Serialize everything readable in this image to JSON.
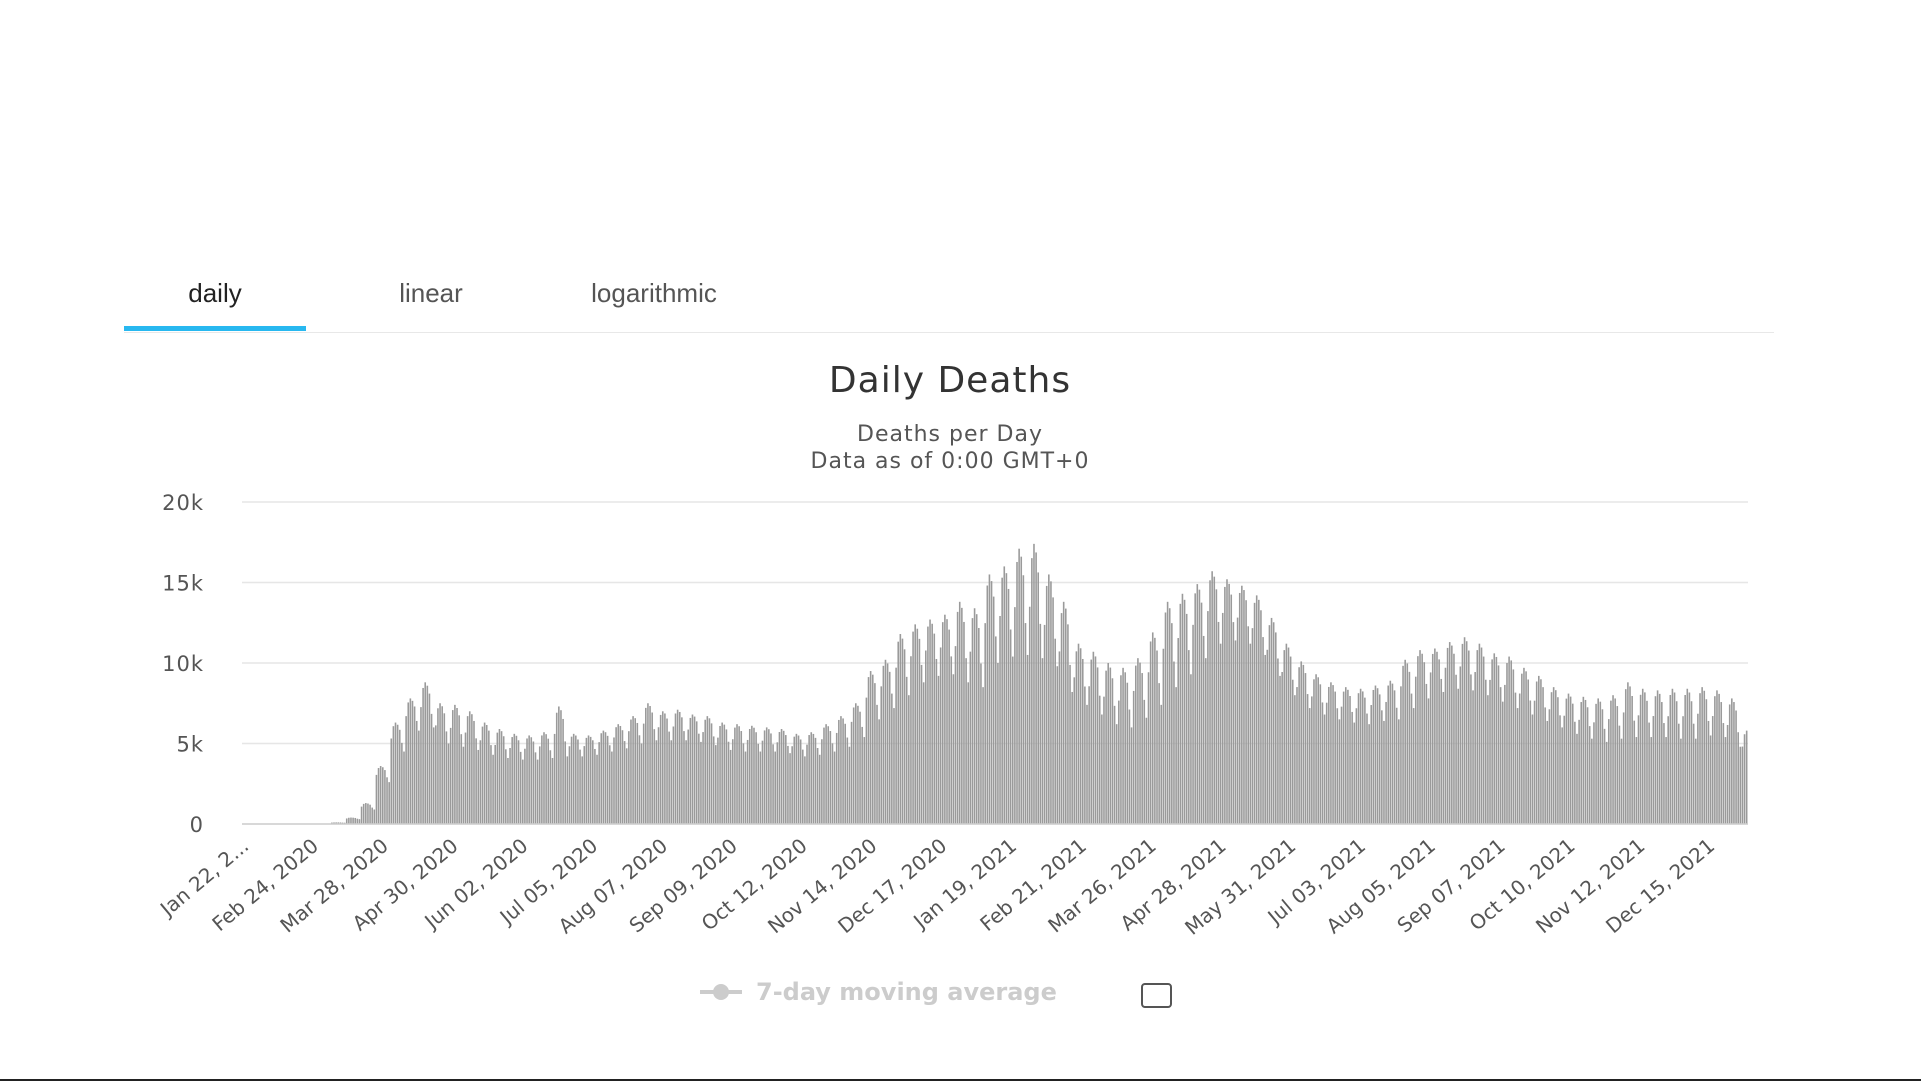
{
  "tabs": [
    {
      "label": "daily",
      "active": true
    },
    {
      "label": "linear",
      "active": false
    },
    {
      "label": "logarithmic",
      "active": false
    }
  ],
  "colors": {
    "bars": "#9a9a9a",
    "grid": "#e6e6e6",
    "tab_accent": "#28b8f0",
    "legend_disabled": "#cccccc"
  },
  "legend": {
    "label": "7-day moving average",
    "enabled": false
  },
  "chart_data": {
    "type": "bar",
    "title": "Daily Deaths",
    "subtitle_lines": [
      "Deaths per Day",
      "Data as of 0:00 GMT+0"
    ],
    "xlabel": "",
    "ylabel": "",
    "ylim": [
      0,
      20000
    ],
    "yticks": [
      0,
      5000,
      10000,
      15000,
      20000
    ],
    "ytick_labels": [
      "0",
      "5k",
      "10k",
      "15k",
      "20k"
    ],
    "xtick_labels": [
      "Jan 22, 2...",
      "Feb 24, 2020",
      "Mar 28, 2020",
      "Apr 30, 2020",
      "Jun 02, 2020",
      "Jul 05, 2020",
      "Aug 07, 2020",
      "Sep 09, 2020",
      "Oct 12, 2020",
      "Nov 14, 2020",
      "Dec 17, 2020",
      "Jan 19, 2021",
      "Feb 21, 2021",
      "Mar 26, 2021",
      "Apr 28, 2021",
      "May 31, 2021",
      "Jul 03, 2021",
      "Aug 05, 2021",
      "Sep 07, 2021",
      "Oct 10, 2021",
      "Nov 12, 2021",
      "Dec 15, 2021"
    ],
    "grid": true,
    "start_date": "2020-01-22",
    "end_date": "2021-12-31",
    "weekly_series": [
      {
        "week_start": "2020-01-22",
        "high": 0,
        "low": 0
      },
      {
        "week_start": "2020-01-29",
        "high": 0,
        "low": 0
      },
      {
        "week_start": "2020-02-05",
        "high": 0,
        "low": 0
      },
      {
        "week_start": "2020-02-12",
        "high": 0,
        "low": 0
      },
      {
        "week_start": "2020-02-19",
        "high": 0,
        "low": 0
      },
      {
        "week_start": "2020-02-26",
        "high": 0,
        "low": 0
      },
      {
        "week_start": "2020-03-04",
        "high": 100,
        "low": 80
      },
      {
        "week_start": "2020-03-11",
        "high": 400,
        "low": 300
      },
      {
        "week_start": "2020-03-18",
        "high": 1300,
        "low": 900
      },
      {
        "week_start": "2020-03-25",
        "high": 3600,
        "low": 2600
      },
      {
        "week_start": "2020-04-01",
        "high": 6300,
        "low": 4500
      },
      {
        "week_start": "2020-04-08",
        "high": 7800,
        "low": 5800
      },
      {
        "week_start": "2020-04-15",
        "high": 8800,
        "low": 6000
      },
      {
        "week_start": "2020-04-22",
        "high": 7500,
        "low": 5000
      },
      {
        "week_start": "2020-04-29",
        "high": 7400,
        "low": 4800
      },
      {
        "week_start": "2020-05-06",
        "high": 7000,
        "low": 4600
      },
      {
        "week_start": "2020-05-13",
        "high": 6300,
        "low": 4300
      },
      {
        "week_start": "2020-05-20",
        "high": 5900,
        "low": 4100
      },
      {
        "week_start": "2020-05-27",
        "high": 5600,
        "low": 4000
      },
      {
        "week_start": "2020-06-03",
        "high": 5500,
        "low": 4000
      },
      {
        "week_start": "2020-06-10",
        "high": 5700,
        "low": 4100
      },
      {
        "week_start": "2020-06-17",
        "high": 7300,
        "low": 4200
      },
      {
        "week_start": "2020-06-24",
        "high": 5600,
        "low": 4200
      },
      {
        "week_start": "2020-07-01",
        "high": 5500,
        "low": 4300
      },
      {
        "week_start": "2020-07-08",
        "high": 5800,
        "low": 4500
      },
      {
        "week_start": "2020-07-15",
        "high": 6200,
        "low": 4700
      },
      {
        "week_start": "2020-07-22",
        "high": 6700,
        "low": 5000
      },
      {
        "week_start": "2020-07-29",
        "high": 7500,
        "low": 5200
      },
      {
        "week_start": "2020-08-05",
        "high": 7000,
        "low": 5200
      },
      {
        "week_start": "2020-08-12",
        "high": 7100,
        "low": 5200
      },
      {
        "week_start": "2020-08-19",
        "high": 6800,
        "low": 5100
      },
      {
        "week_start": "2020-08-26",
        "high": 6700,
        "low": 4900
      },
      {
        "week_start": "2020-09-02",
        "high": 6300,
        "low": 4600
      },
      {
        "week_start": "2020-09-09",
        "high": 6200,
        "low": 4500
      },
      {
        "week_start": "2020-09-16",
        "high": 6100,
        "low": 4500
      },
      {
        "week_start": "2020-09-23",
        "high": 6000,
        "low": 4500
      },
      {
        "week_start": "2020-09-30",
        "high": 5900,
        "low": 4400
      },
      {
        "week_start": "2020-10-07",
        "high": 5600,
        "low": 4200
      },
      {
        "week_start": "2020-10-14",
        "high": 5700,
        "low": 4300
      },
      {
        "week_start": "2020-10-21",
        "high": 6200,
        "low": 4500
      },
      {
        "week_start": "2020-10-28",
        "high": 6700,
        "low": 4800
      },
      {
        "week_start": "2020-11-04",
        "high": 7500,
        "low": 5400
      },
      {
        "week_start": "2020-11-11",
        "high": 9500,
        "low": 6500
      },
      {
        "week_start": "2020-11-18",
        "high": 10200,
        "low": 7200
      },
      {
        "week_start": "2020-11-25",
        "high": 11800,
        "low": 8000
      },
      {
        "week_start": "2020-12-02",
        "high": 12400,
        "low": 8800
      },
      {
        "week_start": "2020-12-09",
        "high": 12700,
        "low": 9200
      },
      {
        "week_start": "2020-12-16",
        "high": 13000,
        "low": 9300
      },
      {
        "week_start": "2020-12-23",
        "high": 13800,
        "low": 8800
      },
      {
        "week_start": "2020-12-30",
        "high": 13400,
        "low": 8500
      },
      {
        "week_start": "2021-01-06",
        "high": 15500,
        "low": 10000
      },
      {
        "week_start": "2021-01-13",
        "high": 16000,
        "low": 10400
      },
      {
        "week_start": "2021-01-20",
        "high": 17100,
        "low": 10500
      },
      {
        "week_start": "2021-01-27",
        "high": 17400,
        "low": 10300
      },
      {
        "week_start": "2021-02-03",
        "high": 15500,
        "low": 9800
      },
      {
        "week_start": "2021-02-10",
        "high": 13800,
        "low": 8200
      },
      {
        "week_start": "2021-02-17",
        "high": 11200,
        "low": 7400
      },
      {
        "week_start": "2021-02-24",
        "high": 10700,
        "low": 6800
      },
      {
        "week_start": "2021-03-03",
        "high": 10000,
        "low": 6200
      },
      {
        "week_start": "2021-03-10",
        "high": 9700,
        "low": 6000
      },
      {
        "week_start": "2021-03-17",
        "high": 10300,
        "low": 6600
      },
      {
        "week_start": "2021-03-24",
        "high": 11900,
        "low": 7400
      },
      {
        "week_start": "2021-03-31",
        "high": 13800,
        "low": 8500
      },
      {
        "week_start": "2021-04-07",
        "high": 14300,
        "low": 9300
      },
      {
        "week_start": "2021-04-14",
        "high": 14900,
        "low": 10300
      },
      {
        "week_start": "2021-04-21",
        "high": 15700,
        "low": 11200
      },
      {
        "week_start": "2021-04-28",
        "high": 15200,
        "low": 11400
      },
      {
        "week_start": "2021-05-05",
        "high": 14800,
        "low": 11200
      },
      {
        "week_start": "2021-05-12",
        "high": 14200,
        "low": 10500
      },
      {
        "week_start": "2021-05-19",
        "high": 12800,
        "low": 9200
      },
      {
        "week_start": "2021-05-26",
        "high": 11200,
        "low": 8000
      },
      {
        "week_start": "2021-06-02",
        "high": 10100,
        "low": 7200
      },
      {
        "week_start": "2021-06-09",
        "high": 9300,
        "low": 6800
      },
      {
        "week_start": "2021-06-16",
        "high": 8800,
        "low": 6500
      },
      {
        "week_start": "2021-06-23",
        "high": 8500,
        "low": 6300
      },
      {
        "week_start": "2021-06-30",
        "high": 8400,
        "low": 6200
      },
      {
        "week_start": "2021-07-07",
        "high": 8600,
        "low": 6400
      },
      {
        "week_start": "2021-07-14",
        "high": 8900,
        "low": 6500
      },
      {
        "week_start": "2021-07-21",
        "high": 10200,
        "low": 7200
      },
      {
        "week_start": "2021-07-28",
        "high": 10800,
        "low": 7800
      },
      {
        "week_start": "2021-08-04",
        "high": 10900,
        "low": 8200
      },
      {
        "week_start": "2021-08-11",
        "high": 11300,
        "low": 8400
      },
      {
        "week_start": "2021-08-18",
        "high": 11600,
        "low": 8300
      },
      {
        "week_start": "2021-08-25",
        "high": 11200,
        "low": 8000
      },
      {
        "week_start": "2021-09-01",
        "high": 10600,
        "low": 7600
      },
      {
        "week_start": "2021-09-08",
        "high": 10400,
        "low": 7200
      },
      {
        "week_start": "2021-09-15",
        "high": 9700,
        "low": 6800
      },
      {
        "week_start": "2021-09-22",
        "high": 9200,
        "low": 6400
      },
      {
        "week_start": "2021-09-29",
        "high": 8500,
        "low": 6000
      },
      {
        "week_start": "2021-10-06",
        "high": 8100,
        "low": 5600
      },
      {
        "week_start": "2021-10-13",
        "high": 7900,
        "low": 5300
      },
      {
        "week_start": "2021-10-20",
        "high": 7800,
        "low": 5100
      },
      {
        "week_start": "2021-10-27",
        "high": 8000,
        "low": 5300
      },
      {
        "week_start": "2021-11-03",
        "high": 8800,
        "low": 5400
      },
      {
        "week_start": "2021-11-10",
        "high": 8400,
        "low": 5400
      },
      {
        "week_start": "2021-11-17",
        "high": 8300,
        "low": 5400
      },
      {
        "week_start": "2021-11-24",
        "high": 8400,
        "low": 5300
      },
      {
        "week_start": "2021-12-01",
        "high": 8400,
        "low": 5300
      },
      {
        "week_start": "2021-12-08",
        "high": 8500,
        "low": 5500
      },
      {
        "week_start": "2021-12-15",
        "high": 8300,
        "low": 5400
      },
      {
        "week_start": "2021-12-22",
        "high": 7800,
        "low": 4800
      },
      {
        "week_start": "2021-12-29",
        "high": 5800,
        "low": 4000
      }
    ]
  }
}
